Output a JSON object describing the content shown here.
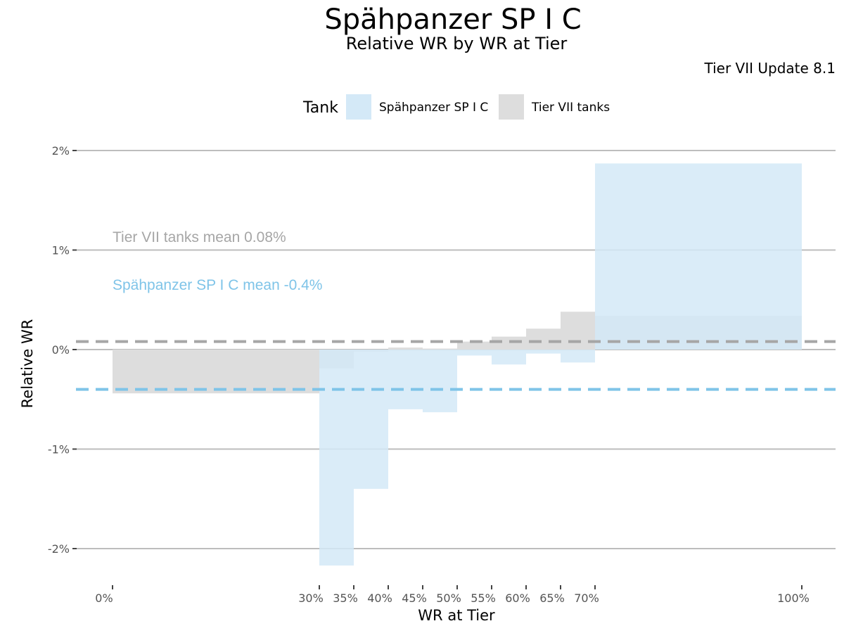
{
  "chart_data": {
    "type": "bar",
    "title": "Spähpanzer SP I C",
    "subtitle": "Relative WR by WR at Tier",
    "caption": "Tier VII Update 8.1",
    "xlabel": "WR at Tier",
    "ylabel": "Relative WR",
    "legend": {
      "title": "Tank",
      "position": "top",
      "entries": [
        {
          "label": "Spähpanzer SP I C",
          "color": "#d4e9f7"
        },
        {
          "label": "Tier VII tanks",
          "color": "#dddddd"
        }
      ]
    },
    "x_ticks": [
      {
        "value": 0,
        "label": "0%"
      },
      {
        "value": 30,
        "label": "30%"
      },
      {
        "value": 35,
        "label": "35%"
      },
      {
        "value": 40,
        "label": "40%"
      },
      {
        "value": 45,
        "label": "45%"
      },
      {
        "value": 50,
        "label": "50%"
      },
      {
        "value": 55,
        "label": "55%"
      },
      {
        "value": 60,
        "label": "60%"
      },
      {
        "value": 65,
        "label": "65%"
      },
      {
        "value": 70,
        "label": "70%"
      },
      {
        "value": 100,
        "label": "100%"
      }
    ],
    "y_ticks": [
      {
        "value": -2,
        "label": "-2%"
      },
      {
        "value": -1,
        "label": "-1%"
      },
      {
        "value": 0,
        "label": "0%"
      },
      {
        "value": 1,
        "label": "1%"
      },
      {
        "value": 2,
        "label": "2%"
      }
    ],
    "xlim": [
      0,
      100
    ],
    "ylim": [
      -2.2,
      2.0
    ],
    "grid": "horizontal",
    "series": [
      {
        "name": "Tier VII tanks",
        "color": "#dddddd",
        "bins": [
          {
            "x0": 0,
            "x1": 30,
            "value": -0.44
          },
          {
            "x0": 30,
            "x1": 35,
            "value": -0.19
          },
          {
            "x0": 35,
            "x1": 40,
            "value": -0.02
          },
          {
            "x0": 40,
            "x1": 45,
            "value": 0.02
          },
          {
            "x0": 45,
            "x1": 50,
            "value": 0.01
          },
          {
            "x0": 50,
            "x1": 55,
            "value": 0.08
          },
          {
            "x0": 55,
            "x1": 60,
            "value": 0.13
          },
          {
            "x0": 60,
            "x1": 65,
            "value": 0.21
          },
          {
            "x0": 65,
            "x1": 70,
            "value": 0.38
          },
          {
            "x0": 70,
            "x1": 100,
            "value": 0.34
          }
        ]
      },
      {
        "name": "Spähpanzer SP I C",
        "color": "#d4e9f7",
        "bins": [
          {
            "x0": 30,
            "x1": 35,
            "value": -2.17
          },
          {
            "x0": 35,
            "x1": 40,
            "value": -1.4
          },
          {
            "x0": 40,
            "x1": 45,
            "value": -0.6
          },
          {
            "x0": 45,
            "x1": 50,
            "value": -0.63
          },
          {
            "x0": 50,
            "x1": 55,
            "value": -0.06
          },
          {
            "x0": 55,
            "x1": 60,
            "value": -0.15
          },
          {
            "x0": 60,
            "x1": 65,
            "value": -0.04
          },
          {
            "x0": 65,
            "x1": 70,
            "value": -0.13
          },
          {
            "x0": 70,
            "x1": 100,
            "value": 1.87
          }
        ]
      }
    ],
    "mean_lines": [
      {
        "series": "Tier VII tanks",
        "value": 0.08,
        "label": "Tier VII tanks mean 0.08%",
        "color": "#a6a6a6"
      },
      {
        "series": "Spähpanzer SP I C",
        "value": -0.4,
        "label": "Spähpanzer SP I C mean -0.4%",
        "color": "#7fc4e8"
      }
    ]
  }
}
